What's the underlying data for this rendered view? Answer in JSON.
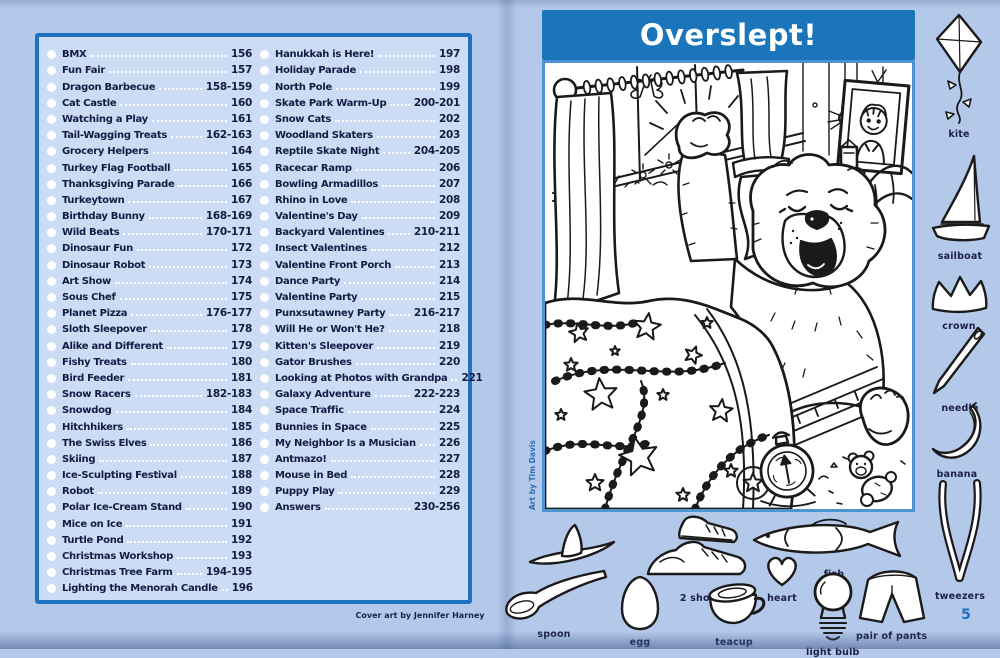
{
  "left_page": {
    "toc_col1": [
      {
        "title": "BMX",
        "pages": "156"
      },
      {
        "title": "Fun Fair",
        "pages": "157"
      },
      {
        "title": "Dragon Barbecue",
        "pages": "158-159"
      },
      {
        "title": "Cat Castle",
        "pages": "160"
      },
      {
        "title": "Watching a Play",
        "pages": "161"
      },
      {
        "title": "Tail-Wagging Treats",
        "pages": "162-163"
      },
      {
        "title": "Grocery Helpers",
        "pages": "164"
      },
      {
        "title": "Turkey Flag Football",
        "pages": "165"
      },
      {
        "title": "Thanksgiving Parade",
        "pages": "166"
      },
      {
        "title": "Turkeytown",
        "pages": "167"
      },
      {
        "title": "Birthday Bunny",
        "pages": "168-169"
      },
      {
        "title": "Wild Beats",
        "pages": "170-171"
      },
      {
        "title": "Dinosaur Fun",
        "pages": "172"
      },
      {
        "title": "Dinosaur Robot",
        "pages": "173"
      },
      {
        "title": "Art Show",
        "pages": "174"
      },
      {
        "title": "Sous Chef",
        "pages": "175"
      },
      {
        "title": "Planet Pizza",
        "pages": "176-177"
      },
      {
        "title": "Sloth Sleepover",
        "pages": "178"
      },
      {
        "title": "Alike and Different",
        "pages": "179"
      },
      {
        "title": "Fishy Treats",
        "pages": "180"
      },
      {
        "title": "Bird Feeder",
        "pages": "181"
      },
      {
        "title": "Snow Racers",
        "pages": "182-183"
      },
      {
        "title": "Snowdog",
        "pages": "184"
      },
      {
        "title": "Hitchhikers",
        "pages": "185"
      },
      {
        "title": "The Swiss Elves",
        "pages": "186"
      },
      {
        "title": "Skiing",
        "pages": "187"
      },
      {
        "title": "Ice-Sculpting Festival",
        "pages": "188"
      },
      {
        "title": "Robot",
        "pages": "189"
      },
      {
        "title": "Polar Ice-Cream Stand",
        "pages": "190"
      },
      {
        "title": "Mice on Ice",
        "pages": "191"
      },
      {
        "title": "Turtle Pond",
        "pages": "192"
      },
      {
        "title": "Christmas Workshop",
        "pages": "193"
      },
      {
        "title": "Christmas Tree Farm",
        "pages": "194-195"
      },
      {
        "title": "Lighting the Menorah Candle",
        "pages": "196"
      }
    ],
    "toc_col2": [
      {
        "title": "Hanukkah is Here!",
        "pages": "197"
      },
      {
        "title": "Holiday Parade",
        "pages": "198"
      },
      {
        "title": "North Pole",
        "pages": "199"
      },
      {
        "title": "Skate Park Warm-Up",
        "pages": "200-201"
      },
      {
        "title": "Snow Cats",
        "pages": "202"
      },
      {
        "title": "Woodland Skaters",
        "pages": "203"
      },
      {
        "title": "Reptile Skate Night",
        "pages": "204-205"
      },
      {
        "title": "Racecar Ramp",
        "pages": "206"
      },
      {
        "title": "Bowling Armadillos",
        "pages": "207"
      },
      {
        "title": "Rhino in Love",
        "pages": "208"
      },
      {
        "title": "Valentine's Day",
        "pages": "209"
      },
      {
        "title": "Backyard Valentines",
        "pages": "210-211"
      },
      {
        "title": "Insect Valentines",
        "pages": "212"
      },
      {
        "title": "Valentine Front Porch",
        "pages": "213"
      },
      {
        "title": "Dance Party",
        "pages": "214"
      },
      {
        "title": "Valentine Party",
        "pages": "215"
      },
      {
        "title": "Punxsutawney Party",
        "pages": "216-217"
      },
      {
        "title": "Will He or Won't He?",
        "pages": "218"
      },
      {
        "title": "Kitten's Sleepover",
        "pages": "219"
      },
      {
        "title": "Gator Brushes",
        "pages": "220"
      },
      {
        "title": "Looking at Photos with Grandpa",
        "pages": "221"
      },
      {
        "title": "Galaxy Adventure",
        "pages": "222-223"
      },
      {
        "title": "Space Traffic",
        "pages": "224"
      },
      {
        "title": "Bunnies in Space",
        "pages": "225"
      },
      {
        "title": "My Neighbor Is a Musician",
        "pages": "226"
      },
      {
        "title": "Antmazo!",
        "pages": "227"
      },
      {
        "title": "Mouse in Bed",
        "pages": "228"
      },
      {
        "title": "Puppy Play",
        "pages": "229"
      },
      {
        "title": "Answers",
        "pages": "230-256"
      }
    ],
    "cover_credit": "Cover art by Jennifer Harney"
  },
  "right_page": {
    "title": "Overslept!",
    "art_credit": "Art by Tim Davis",
    "folio": "5",
    "hidden_objects_side": [
      "kite",
      "sailboat",
      "crown",
      "needle",
      "banana",
      "tweezers"
    ],
    "hidden_objects_bottom": [
      "hat",
      "spoon",
      "egg",
      "2 shoes",
      "teacup",
      "fish",
      "heart",
      "light bulb",
      "pair of pants"
    ]
  },
  "colors": {
    "page_background": "#b4c8e9",
    "toc_panel_background": "#cbdcf4",
    "toc_panel_border": "#1d73c1",
    "title_band": "#1b75bb",
    "title_text": "#ffffff",
    "toc_text": "#141c44",
    "folio_text": "#1f6fc0",
    "illustration_border": "#4f93d2"
  }
}
